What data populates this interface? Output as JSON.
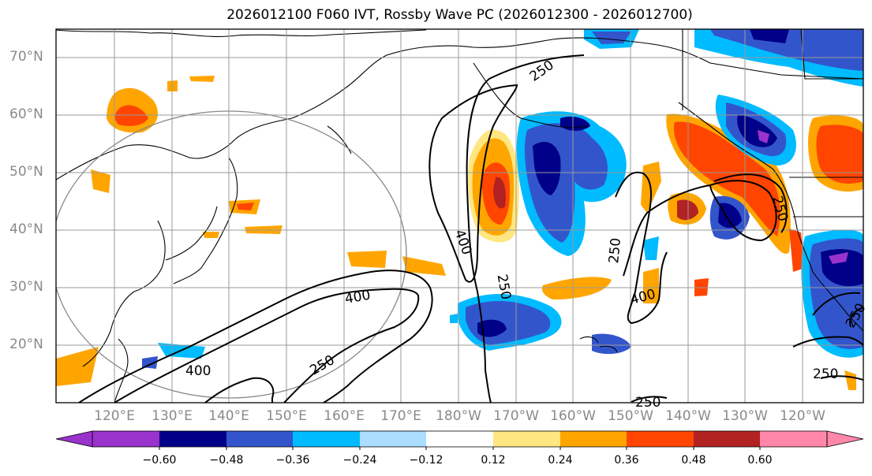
{
  "title": "2026012100 F060 IVT, Rossby Wave PC (2026012300 - 2026012700)",
  "lat_labels": [
    "70°N",
    "60°N",
    "50°N",
    "40°N",
    "30°N",
    "20°N"
  ],
  "lon_labels": [
    "120°E",
    "130°E",
    "140°E",
    "150°E",
    "160°E",
    "170°E",
    "180°W",
    "170°W",
    "160°W",
    "150°W",
    "140°W",
    "130°W",
    "120°W"
  ],
  "contour_labels": [
    "250",
    "400",
    "250",
    "250",
    "400",
    "250",
    "400",
    "250",
    "400",
    "250",
    "250",
    "250"
  ],
  "colorbar": {
    "ticks": [
      "−0.60",
      "−0.48",
      "−0.36",
      "−0.24",
      "−0.12",
      "0.12",
      "0.24",
      "0.36",
      "0.48",
      "0.60"
    ],
    "colors": [
      "#9933cc",
      "#000088",
      "#3355cc",
      "#00bbff",
      "#aaddff",
      "#ffffff",
      "#ffe680",
      "#ffa500",
      "#ff4500",
      "#b22222",
      "#ff88aa"
    ]
  },
  "colors": {
    "orange": "#ffa500",
    "red_orange": "#ff4500",
    "dark_red": "#b22222",
    "yellow": "#ffe680",
    "cyan": "#00bbff",
    "blue": "#3355cc",
    "navy": "#000088",
    "light_blue": "#aaddff",
    "purple": "#9933cc"
  }
}
